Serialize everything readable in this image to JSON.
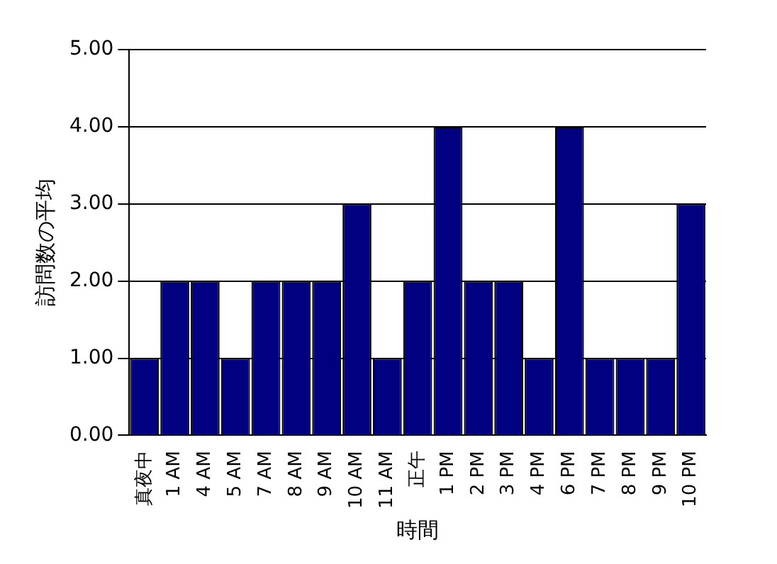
{
  "chart_data": {
    "type": "bar",
    "xlabel": "時間",
    "ylabel": "訪問数の平均",
    "categories": [
      "真夜中",
      "1 AM",
      "4 AM",
      "5 AM",
      "7 AM",
      "8 AM",
      "9 AM",
      "10 AM",
      "11 AM",
      "正午",
      "1 PM",
      "2 PM",
      "3 PM",
      "4 PM",
      "6 PM",
      "7 PM",
      "8 PM",
      "9 PM",
      "10 PM"
    ],
    "values": [
      1,
      2,
      2,
      1,
      2,
      2,
      2,
      3,
      1,
      2,
      4,
      2,
      2,
      1,
      4,
      1,
      1,
      1,
      3
    ],
    "color": "#000080",
    "ylim": [
      0,
      5
    ],
    "yticks": [
      {
        "value": 0,
        "label": "0.00"
      },
      {
        "value": 1,
        "label": "1.00"
      },
      {
        "value": 2,
        "label": "2.00"
      },
      {
        "value": 3,
        "label": "3.00"
      },
      {
        "value": 4,
        "label": "4.00"
      },
      {
        "value": 5,
        "label": "5.00"
      }
    ],
    "grid": "y",
    "legend": false
  }
}
